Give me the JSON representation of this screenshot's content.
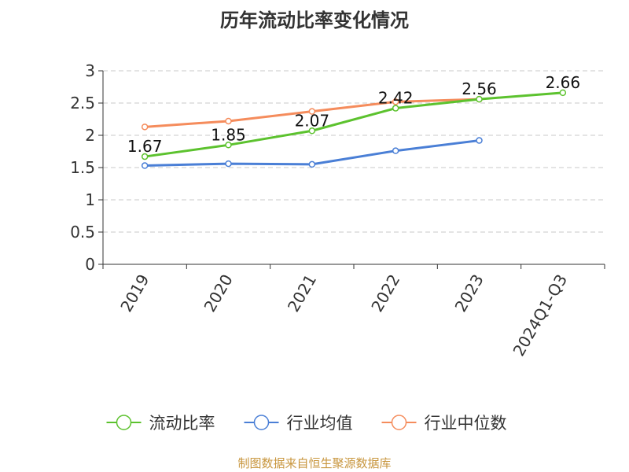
{
  "chart_data": {
    "type": "line",
    "title": "历年流动比率变化情况",
    "categories": [
      "2019",
      "2020",
      "2021",
      "2022",
      "2023",
      "2024Q1-Q3"
    ],
    "ylim": [
      0,
      3
    ],
    "yticks": [
      "0",
      "0.5",
      "1",
      "1.5",
      "2",
      "2.5",
      "3"
    ],
    "grid": true,
    "legend_position": "bottom",
    "series": [
      {
        "name": "流动比率",
        "color": "#5cc22e",
        "values": [
          1.67,
          1.85,
          2.07,
          2.42,
          2.56,
          2.66
        ],
        "labels": [
          "1.67",
          "1.85",
          "2.07",
          "2.42",
          "2.56",
          "2.66"
        ]
      },
      {
        "name": "行业均值",
        "color": "#4a7fd6",
        "values": [
          1.53,
          1.56,
          1.55,
          1.76,
          1.92,
          null
        ]
      },
      {
        "name": "行业中位数",
        "color": "#f58c5c",
        "values": [
          2.13,
          2.22,
          2.37,
          2.52,
          2.56,
          null
        ]
      }
    ]
  },
  "footer": {
    "source": "制图数据来自恒生聚源数据库"
  }
}
